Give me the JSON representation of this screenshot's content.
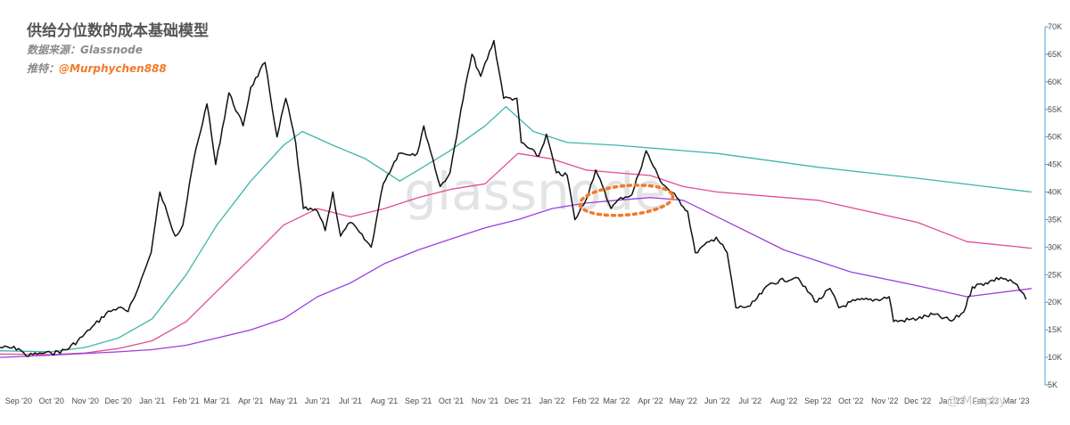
{
  "header": {
    "title": "供给分位数的成本基础模型",
    "source_label": "数据来源：",
    "source_value": "Glassnode",
    "twitter_label": "推特：",
    "twitter_handle": "@Murphychen888"
  },
  "watermark_brand": "glassnode",
  "watermark_author": "@ Murphy",
  "chart_data": {
    "type": "line",
    "title": "供给分位数的成本基础模型",
    "y_axis": {
      "side": "right",
      "min": 5000,
      "max": 70000,
      "ticks": [
        "5K",
        "10K",
        "15K",
        "20K",
        "25K",
        "30K",
        "35K",
        "40K",
        "45K",
        "50K",
        "55K",
        "60K",
        "65K",
        "70K"
      ],
      "tick_values": [
        5000,
        10000,
        15000,
        20000,
        25000,
        30000,
        35000,
        40000,
        45000,
        50000,
        55000,
        60000,
        65000,
        70000
      ]
    },
    "x_axis": {
      "start": "2020-08-15",
      "end": "2023-03-20",
      "ticks": [
        "Sep '20",
        "Oct '20",
        "Nov '20",
        "Dec '20",
        "Jan '21",
        "Feb '21",
        "Mar '21",
        "Apr '21",
        "May '21",
        "Jun '21",
        "Jul '21",
        "Aug '21",
        "Sep '21",
        "Oct '21",
        "Nov '21",
        "Dec '21",
        "Jan '22",
        "Feb '22",
        "Mar '22",
        "Apr '22",
        "May '22",
        "Jun '22",
        "Jul '22",
        "Aug '22",
        "Sep '22",
        "Oct '22",
        "Nov '22",
        "Dec '22",
        "Jan '23",
        "Feb '23",
        "Mar '23"
      ],
      "tick_dates": [
        "2020-09-01",
        "2020-10-01",
        "2020-11-01",
        "2020-12-01",
        "2021-01-01",
        "2021-02-01",
        "2021-03-01",
        "2021-04-01",
        "2021-05-01",
        "2021-06-01",
        "2021-07-01",
        "2021-08-01",
        "2021-09-01",
        "2021-10-01",
        "2021-11-01",
        "2021-12-01",
        "2022-01-01",
        "2022-02-01",
        "2022-03-01",
        "2022-04-01",
        "2022-05-01",
        "2022-06-01",
        "2022-07-01",
        "2022-08-01",
        "2022-09-01",
        "2022-10-01",
        "2022-11-01",
        "2022-12-01",
        "2023-01-01",
        "2023-02-01",
        "2023-03-01"
      ]
    },
    "grid": false,
    "legend": "none",
    "series": [
      {
        "key": "price",
        "color": "#111111",
        "points": [
          [
            "2020-08-15",
            11800
          ],
          [
            "2020-09-01",
            11600
          ],
          [
            "2020-09-08",
            10200
          ],
          [
            "2020-09-20",
            10800
          ],
          [
            "2020-10-01",
            10700
          ],
          [
            "2020-10-15",
            11400
          ],
          [
            "2020-10-25",
            13000
          ],
          [
            "2020-11-05",
            15000
          ],
          [
            "2020-11-20",
            18000
          ],
          [
            "2020-12-01",
            19000
          ],
          [
            "2020-12-10",
            18300
          ],
          [
            "2020-12-20",
            23000
          ],
          [
            "2020-12-31",
            29000
          ],
          [
            "2021-01-08",
            40000
          ],
          [
            "2021-01-15",
            36000
          ],
          [
            "2021-01-22",
            32000
          ],
          [
            "2021-01-29",
            34000
          ],
          [
            "2021-02-08",
            46000
          ],
          [
            "2021-02-20",
            56000
          ],
          [
            "2021-02-28",
            45000
          ],
          [
            "2021-03-12",
            58000
          ],
          [
            "2021-03-25",
            52000
          ],
          [
            "2021-04-01",
            59000
          ],
          [
            "2021-04-14",
            63500
          ],
          [
            "2021-04-25",
            50000
          ],
          [
            "2021-05-03",
            57000
          ],
          [
            "2021-05-12",
            49000
          ],
          [
            "2021-05-19",
            37000
          ],
          [
            "2021-06-01",
            36500
          ],
          [
            "2021-06-08",
            33000
          ],
          [
            "2021-06-15",
            40000
          ],
          [
            "2021-06-22",
            32000
          ],
          [
            "2021-07-01",
            34500
          ],
          [
            "2021-07-20",
            30000
          ],
          [
            "2021-07-31",
            41500
          ],
          [
            "2021-08-14",
            47000
          ],
          [
            "2021-08-31",
            47000
          ],
          [
            "2021-09-06",
            52000
          ],
          [
            "2021-09-21",
            41000
          ],
          [
            "2021-09-30",
            43500
          ],
          [
            "2021-10-10",
            55000
          ],
          [
            "2021-10-20",
            65000
          ],
          [
            "2021-10-28",
            61000
          ],
          [
            "2021-11-09",
            67500
          ],
          [
            "2021-11-18",
            57000
          ],
          [
            "2021-11-30",
            57000
          ],
          [
            "2021-12-04",
            49000
          ],
          [
            "2021-12-20",
            46500
          ],
          [
            "2021-12-27",
            50500
          ],
          [
            "2022-01-05",
            43500
          ],
          [
            "2022-01-15",
            43000
          ],
          [
            "2022-01-22",
            35000
          ],
          [
            "2022-02-01",
            38500
          ],
          [
            "2022-02-10",
            44000
          ],
          [
            "2022-02-24",
            37000
          ],
          [
            "2022-03-05",
            39000
          ],
          [
            "2022-03-15",
            39500
          ],
          [
            "2022-03-28",
            47500
          ],
          [
            "2022-04-10",
            42000
          ],
          [
            "2022-04-25",
            39000
          ],
          [
            "2022-05-05",
            36500
          ],
          [
            "2022-05-12",
            29000
          ],
          [
            "2022-05-31",
            31800
          ],
          [
            "2022-06-10",
            29000
          ],
          [
            "2022-06-18",
            19000
          ],
          [
            "2022-07-01",
            19300
          ],
          [
            "2022-07-20",
            23500
          ],
          [
            "2022-08-12",
            24500
          ],
          [
            "2022-08-31",
            20000
          ],
          [
            "2022-09-12",
            22500
          ],
          [
            "2022-09-20",
            19000
          ],
          [
            "2022-10-05",
            20300
          ],
          [
            "2022-10-25",
            20500
          ],
          [
            "2022-11-05",
            21000
          ],
          [
            "2022-11-09",
            16500
          ],
          [
            "2022-12-01",
            17000
          ],
          [
            "2022-12-15",
            17800
          ],
          [
            "2023-01-01",
            16600
          ],
          [
            "2023-01-12",
            18200
          ],
          [
            "2023-01-20",
            22800
          ],
          [
            "2023-02-01",
            23500
          ],
          [
            "2023-02-15",
            24500
          ],
          [
            "2023-02-28",
            23400
          ],
          [
            "2023-03-10",
            20500
          ]
        ]
      },
      {
        "key": "teal",
        "color": "#3fb6aa",
        "points": [
          [
            "2020-08-15",
            11200
          ],
          [
            "2020-10-01",
            11000
          ],
          [
            "2020-11-01",
            11800
          ],
          [
            "2020-12-01",
            13500
          ],
          [
            "2021-01-01",
            17000
          ],
          [
            "2021-02-01",
            25000
          ],
          [
            "2021-03-01",
            34000
          ],
          [
            "2021-04-01",
            42000
          ],
          [
            "2021-05-01",
            48500
          ],
          [
            "2021-05-18",
            51000
          ],
          [
            "2021-06-15",
            48500
          ],
          [
            "2021-07-15",
            46000
          ],
          [
            "2021-08-15",
            42000
          ],
          [
            "2021-09-01",
            44000
          ],
          [
            "2021-09-30",
            47500
          ],
          [
            "2021-11-01",
            52000
          ],
          [
            "2021-11-20",
            55500
          ],
          [
            "2021-12-15",
            51000
          ],
          [
            "2022-01-15",
            49000
          ],
          [
            "2022-03-01",
            48500
          ],
          [
            "2022-06-01",
            47000
          ],
          [
            "2022-09-01",
            44500
          ],
          [
            "2022-12-01",
            42500
          ],
          [
            "2023-03-15",
            40000
          ]
        ]
      },
      {
        "key": "pink",
        "color": "#e14b97",
        "points": [
          [
            "2020-08-15",
            10600
          ],
          [
            "2020-10-01",
            10500
          ],
          [
            "2020-11-01",
            10800
          ],
          [
            "2020-12-01",
            11600
          ],
          [
            "2021-01-01",
            13000
          ],
          [
            "2021-02-01",
            16500
          ],
          [
            "2021-03-01",
            22000
          ],
          [
            "2021-04-01",
            28000
          ],
          [
            "2021-05-01",
            34000
          ],
          [
            "2021-06-01",
            37000
          ],
          [
            "2021-07-01",
            35500
          ],
          [
            "2021-08-01",
            37000
          ],
          [
            "2021-09-01",
            39000
          ],
          [
            "2021-10-01",
            40500
          ],
          [
            "2021-11-01",
            41500
          ],
          [
            "2021-12-01",
            47000
          ],
          [
            "2022-01-01",
            46000
          ],
          [
            "2022-02-01",
            44000
          ],
          [
            "2022-03-01",
            43500
          ],
          [
            "2022-04-01",
            43000
          ],
          [
            "2022-05-01",
            41000
          ],
          [
            "2022-06-01",
            40000
          ],
          [
            "2022-09-01",
            38500
          ],
          [
            "2022-12-01",
            34500
          ],
          [
            "2023-01-15",
            31000
          ],
          [
            "2023-03-15",
            29800
          ]
        ]
      },
      {
        "key": "purple",
        "color": "#9b3fe0",
        "points": [
          [
            "2020-08-15",
            10000
          ],
          [
            "2020-10-01",
            10400
          ],
          [
            "2020-12-01",
            11000
          ],
          [
            "2021-01-01",
            11400
          ],
          [
            "2021-02-01",
            12200
          ],
          [
            "2021-03-01",
            13500
          ],
          [
            "2021-04-01",
            15000
          ],
          [
            "2021-05-01",
            17000
          ],
          [
            "2021-06-01",
            21000
          ],
          [
            "2021-07-01",
            23500
          ],
          [
            "2021-08-01",
            27000
          ],
          [
            "2021-09-01",
            29500
          ],
          [
            "2021-10-01",
            31500
          ],
          [
            "2021-11-01",
            33500
          ],
          [
            "2021-12-01",
            35000
          ],
          [
            "2022-01-01",
            37000
          ],
          [
            "2022-02-01",
            38000
          ],
          [
            "2022-03-01",
            38500
          ],
          [
            "2022-04-01",
            39000
          ],
          [
            "2022-05-01",
            38500
          ],
          [
            "2022-06-01",
            35500
          ],
          [
            "2022-08-01",
            29500
          ],
          [
            "2022-10-01",
            25500
          ],
          [
            "2022-12-01",
            23000
          ],
          [
            "2023-01-15",
            21000
          ],
          [
            "2023-03-15",
            22500
          ]
        ]
      }
    ],
    "annotation": {
      "shape": "dotted-ellipse",
      "color": "#f07a2a",
      "center": [
        "2022-03-10",
        38500
      ],
      "span_days": 85,
      "span_value": 5300
    }
  }
}
